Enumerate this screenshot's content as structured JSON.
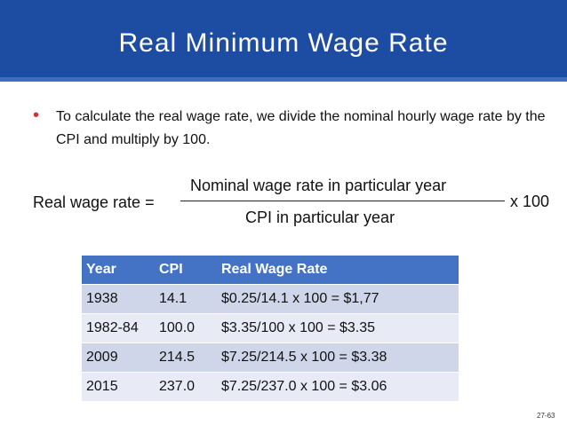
{
  "slide": {
    "title": "Real Minimum Wage Rate",
    "bullet": "To calculate the real wage rate, we divide the nominal hourly wage rate by the CPI and multiply by 100.",
    "formula": {
      "label": "Real wage rate =",
      "numerator": "Nominal wage rate in particular year",
      "denominator": "CPI in particular year",
      "multiplier": "x 100"
    },
    "table": {
      "headers": [
        "Year",
        "CPI",
        "Real Wage Rate"
      ],
      "rows": [
        [
          "1938",
          "14.1",
          "$0.25/14.1 x 100  = $1,77"
        ],
        [
          "1982-84",
          "100.0",
          "$3.35/100 x 100    = $3.35"
        ],
        [
          "2009",
          "214.5",
          "$7.25/214.5 x 100 = $3.38"
        ],
        [
          "2015",
          "237.0",
          "$7.25/237.0 x 100 = $3.06"
        ]
      ]
    },
    "slide_number": "27-63",
    "colors": {
      "title_bar": "#1d4da3",
      "table_header": "#4472c4",
      "bullet": "#d6323a"
    }
  }
}
